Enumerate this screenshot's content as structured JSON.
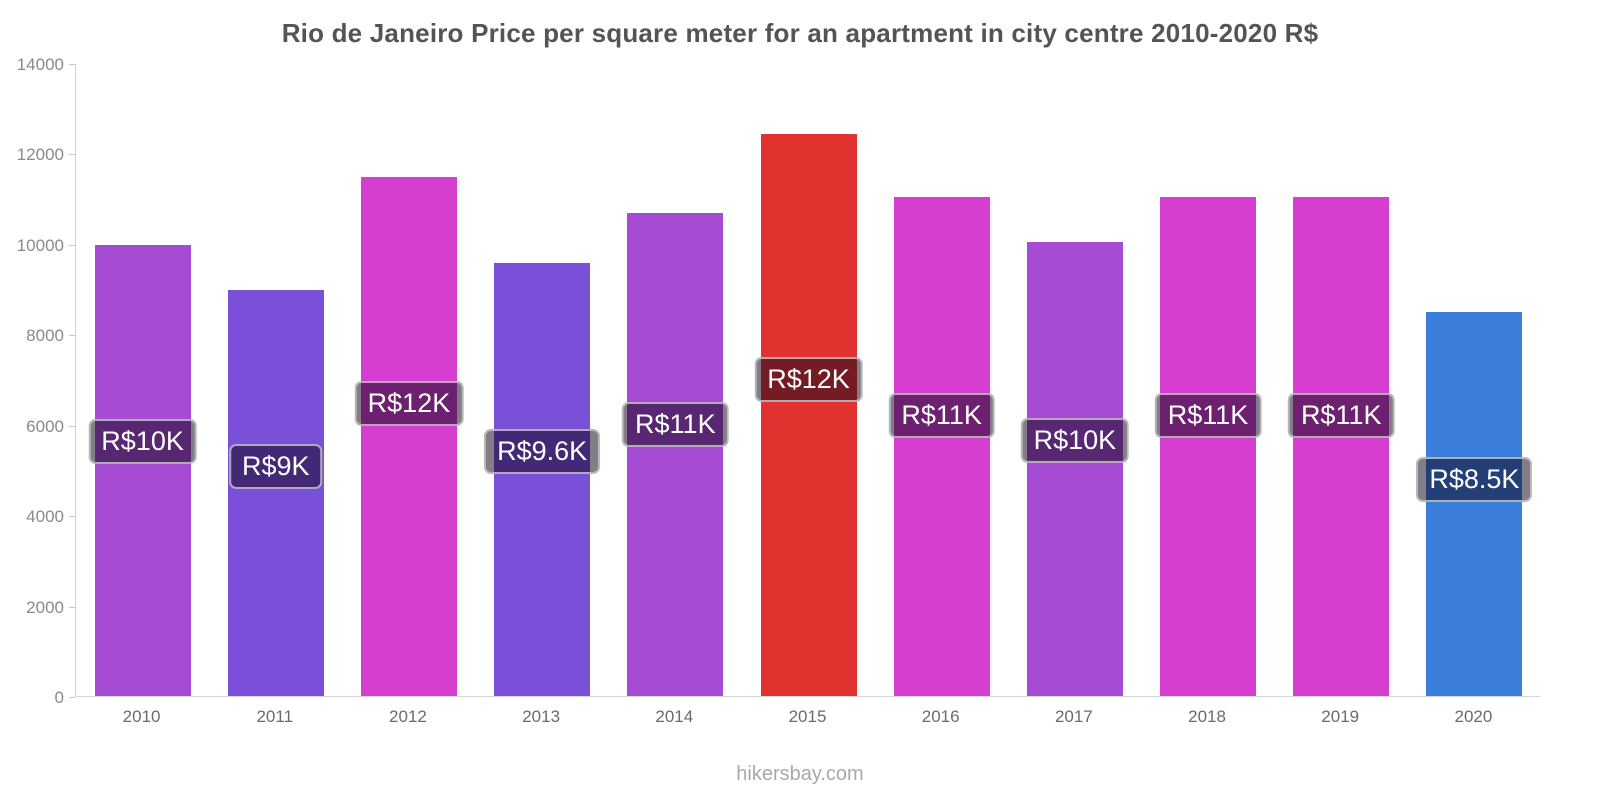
{
  "title": "Rio de Janeiro Price per square meter for an apartment in city centre 2010-2020 R$",
  "footer": "hikersbay.com",
  "chart_data": {
    "type": "bar",
    "title": "Rio de Janeiro Price per square meter for an apartment in city centre 2010-2020 R$",
    "categories": [
      "2010",
      "2011",
      "2012",
      "2013",
      "2014",
      "2015",
      "2016",
      "2017",
      "2018",
      "2019",
      "2020"
    ],
    "values": [
      10000,
      9000,
      11500,
      9600,
      10700,
      12450,
      11050,
      10050,
      11050,
      11050,
      8500
    ],
    "value_labels": [
      "R$10K",
      "R$9K",
      "R$12K",
      "R$9.6K",
      "R$11K",
      "R$12K",
      "R$11K",
      "R$10K",
      "R$11K",
      "R$11K",
      "R$8.5K"
    ],
    "bar_colors": [
      "#a64cd4",
      "#7b50d9",
      "#d53ecf",
      "#7b50d9",
      "#a64cd4",
      "#e23230",
      "#d53ecf",
      "#a64cd4",
      "#d53ecf",
      "#d53ecf",
      "#3c7edc"
    ],
    "xlabel": "",
    "ylabel": "",
    "ylim": [
      0,
      14000
    ],
    "yticks": [
      0,
      2000,
      4000,
      6000,
      8000,
      10000,
      12000,
      14000
    ],
    "grid": false,
    "legend": "none",
    "label_position_fraction_of_bar_height": 0.56
  }
}
